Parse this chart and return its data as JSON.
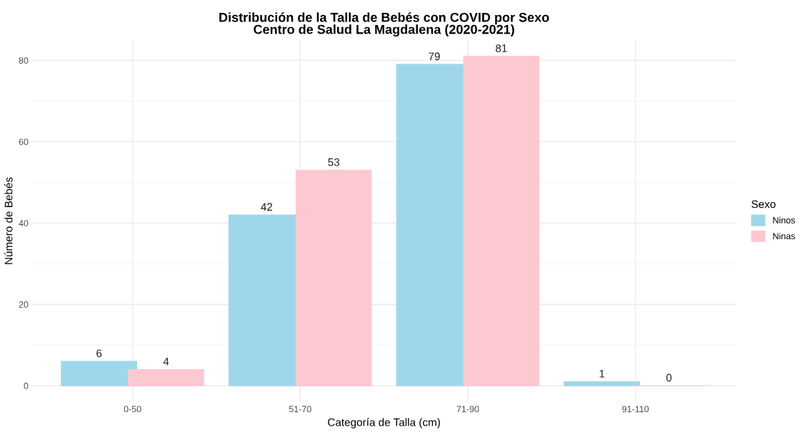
{
  "chart_data": {
    "type": "bar",
    "title": "Distribución de la Talla de Bebés con COVID por Sexo\nCentro de Salud La Magdalena (2020-2021)",
    "xlabel": "Categoría de Talla (cm)",
    "ylabel": "Número de Bebés",
    "legend_title": "Sexo",
    "categories": [
      "0-50",
      "51-70",
      "71-90",
      "91-110"
    ],
    "series": [
      {
        "name": "Ninos",
        "color": "#a0d6eb",
        "values": [
          6,
          42,
          79,
          1
        ]
      },
      {
        "name": "Ninas",
        "color": "#fec8d1",
        "values": [
          4,
          53,
          81,
          0
        ]
      }
    ],
    "ylim": [
      -4.05,
      85.05
    ],
    "yticks": [
      0,
      20,
      40,
      60,
      80
    ],
    "grid": true,
    "legend": "right",
    "data_labels": true
  }
}
